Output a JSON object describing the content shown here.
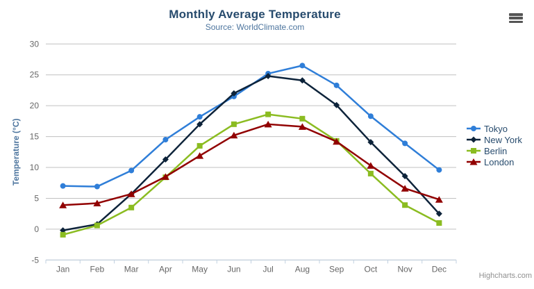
{
  "header": {
    "title": "Monthly Average Temperature",
    "subtitle": "Source: WorldClimate.com"
  },
  "credits": "Highcharts.com",
  "export_menu": {
    "icon": "hamburger-icon"
  },
  "colors": {
    "title": "#274b6d",
    "subtitle": "#4d759e",
    "axis_label": "#666666",
    "axis_title": "#4d759e",
    "grid": "#c0c0c0",
    "axis_line": "#c0d0e0",
    "tick": "#c0d0e0",
    "legend_text": "#274b6d",
    "credits": "#909090"
  },
  "chart_data": {
    "type": "line",
    "title": "Monthly Average Temperature",
    "subtitle": "Source: WorldClimate.com",
    "categories": [
      "Jan",
      "Feb",
      "Mar",
      "Apr",
      "May",
      "Jun",
      "Jul",
      "Aug",
      "Sep",
      "Oct",
      "Nov",
      "Dec"
    ],
    "xlabel": "",
    "ylabel": "Temperature (°C)",
    "ylim": [
      -5,
      30
    ],
    "ytick_step": 5,
    "grid": true,
    "legend_position": "right",
    "series": [
      {
        "name": "Tokyo",
        "color": "#2f7ed8",
        "marker": "circle",
        "values": [
          7.0,
          6.9,
          9.5,
          14.5,
          18.2,
          21.5,
          25.2,
          26.5,
          23.3,
          18.3,
          13.9,
          9.6
        ]
      },
      {
        "name": "New York",
        "color": "#0d233a",
        "marker": "diamond",
        "values": [
          -0.2,
          0.8,
          5.7,
          11.3,
          17.0,
          22.0,
          24.8,
          24.1,
          20.1,
          14.1,
          8.6,
          2.5
        ]
      },
      {
        "name": "Berlin",
        "color": "#8bbc21",
        "marker": "square",
        "values": [
          -0.9,
          0.6,
          3.5,
          8.4,
          13.5,
          17.0,
          18.6,
          17.9,
          14.3,
          9.0,
          3.9,
          1.0
        ]
      },
      {
        "name": "London",
        "color": "#910000",
        "marker": "triangle",
        "values": [
          3.9,
          4.2,
          5.7,
          8.5,
          11.9,
          15.2,
          17.0,
          16.6,
          14.2,
          10.3,
          6.6,
          4.8
        ]
      }
    ]
  }
}
